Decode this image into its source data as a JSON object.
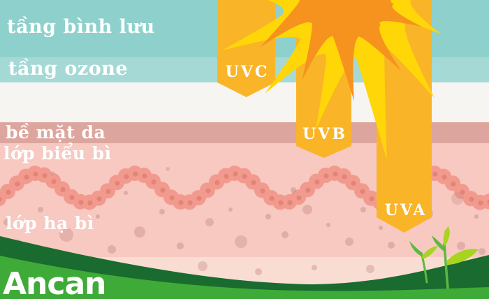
{
  "layers": {
    "stratosphere": "tầng bình lưu",
    "ozone": "tầng ozone",
    "skin_surface": "bề mặt da",
    "epidermis": "lớp biểu bì",
    "dermis": "lớp hạ bì"
  },
  "rays": {
    "uvc": "UVC",
    "uvb": "UVB",
    "uva": "UVA"
  },
  "brand": "Ancan",
  "palette": {
    "teal_top": "#8ed0cc",
    "teal_ozone": "#a4d9d5",
    "band_white": "#f7f5f2",
    "band_rose": "#dca69e",
    "band_pink": "#f7c9c1",
    "band_peach": "#f9ddd2",
    "cell_body": "#f29a8e",
    "cell_nucleus": "#e2randomness"
  }
}
